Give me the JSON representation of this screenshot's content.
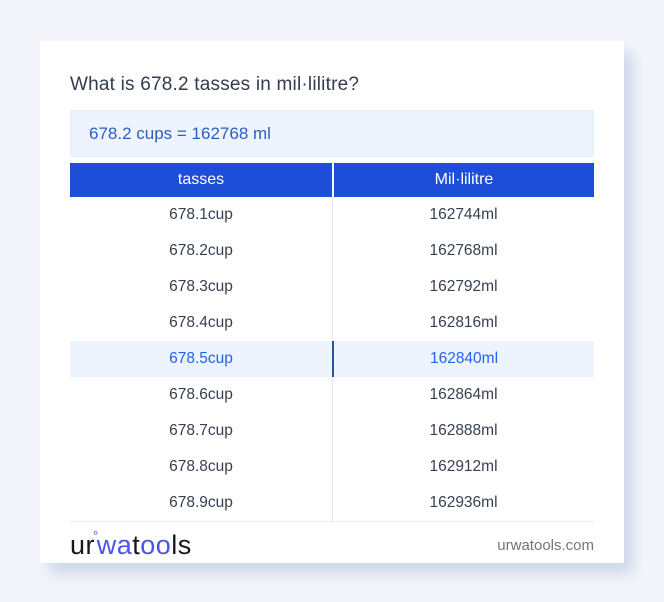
{
  "page": {
    "background_color": "#f3f5fa"
  },
  "card": {
    "title": "What is 678.2 tasses in mil·lilitre?",
    "result_text": "678.2 cups = 162768 ml",
    "colors": {
      "result_box_bg": "#eef4fd",
      "result_text_blue": "#2b5ec5",
      "table_header_bg": "#1d4ed8",
      "highlight_row_bg": "#edf4fe",
      "highlight_text_blue": "#2563eb",
      "highlight_divider_blue": "#1e56a8"
    }
  },
  "table": {
    "headers": {
      "col1": "tasses",
      "col2": "Mil·lilitre"
    },
    "rows": [
      {
        "tasses": "678.1cup",
        "ml": "162744ml",
        "highlighted": false
      },
      {
        "tasses": "678.2cup",
        "ml": "162768ml",
        "highlighted": false
      },
      {
        "tasses": "678.3cup",
        "ml": "162792ml",
        "highlighted": false
      },
      {
        "tasses": "678.4cup",
        "ml": "162816ml",
        "highlighted": false
      },
      {
        "tasses": "678.5cup",
        "ml": "162840ml",
        "highlighted": true
      },
      {
        "tasses": "678.6cup",
        "ml": "162864ml",
        "highlighted": false
      },
      {
        "tasses": "678.7cup",
        "ml": "162888ml",
        "highlighted": false
      },
      {
        "tasses": "678.8cup",
        "ml": "162912ml",
        "highlighted": false
      },
      {
        "tasses": "678.9cup",
        "ml": "162936ml",
        "highlighted": false
      }
    ]
  },
  "footer": {
    "logo": {
      "part_ur": "ur",
      "ring": "°",
      "part_wa": "wa",
      "part_t": "t",
      "part_oo": "oo",
      "part_ls": "ls",
      "logo_blue": "#4b55ee"
    },
    "domain": "urwatools.com"
  }
}
